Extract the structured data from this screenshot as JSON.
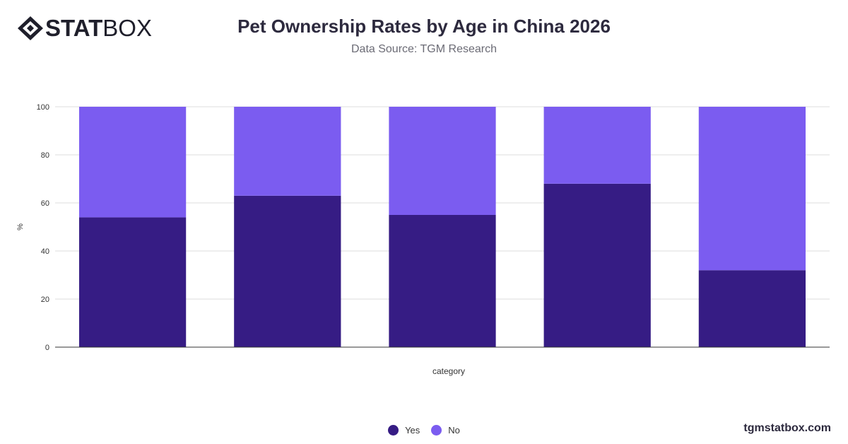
{
  "brand": {
    "logo_bold": "STAT",
    "logo_light": "BOX",
    "watermark": "tgmstatbox.com"
  },
  "header": {
    "title": "Pet Ownership Rates by Age in China 2026",
    "subtitle": "Data Source: TGM Research"
  },
  "chart_data": {
    "type": "bar",
    "stacked": true,
    "title": "Pet Ownership Rates by Age in China 2026",
    "subtitle": "Data Source: TGM Research",
    "xlabel": "category",
    "ylabel": "%",
    "ylim": [
      0,
      100
    ],
    "yticks": [
      0,
      20,
      40,
      60,
      80,
      100
    ],
    "grid": true,
    "legend_position": "bottom",
    "categories": [
      "",
      "",
      "",
      "",
      ""
    ],
    "series": [
      {
        "name": "Yes",
        "color": "#361c84",
        "values": [
          54,
          63,
          55,
          68,
          32
        ]
      },
      {
        "name": "No",
        "color": "#7b5cf0",
        "values": [
          46,
          37,
          45,
          32,
          68
        ]
      }
    ]
  }
}
